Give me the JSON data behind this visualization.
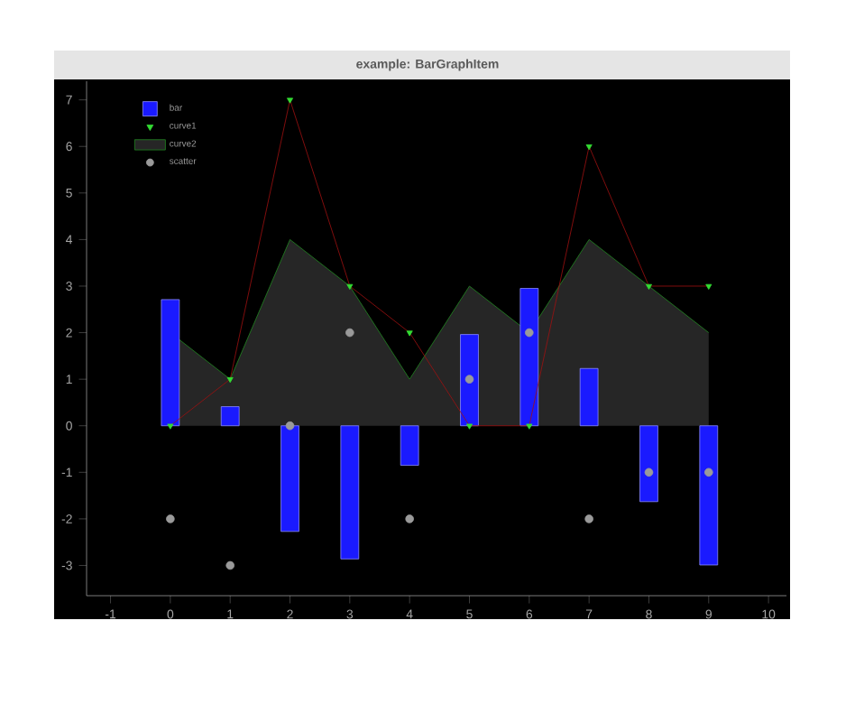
{
  "chart_data": {
    "type": "bar",
    "title": "example: BarGraphItem",
    "x": [
      0,
      1,
      2,
      3,
      4,
      5,
      6,
      7,
      8,
      9
    ],
    "series": [
      {
        "name": "bar",
        "color": "#1a1aff",
        "values": [
          2.71,
          0.41,
          -2.27,
          -2.86,
          -0.85,
          1.96,
          2.95,
          1.23,
          -1.63,
          -2.99
        ]
      },
      {
        "name": "curve1",
        "type": "line",
        "color": "#a01010",
        "marker": "triangle",
        "colors": [
          "#33dd33",
          "#33dd33",
          "#33dd33",
          "#33dd33",
          "#33dd33",
          "#33dd33",
          "#33dd33",
          "#33dd33",
          "#33dd33",
          "#33dd33"
        ],
        "values": [
          0,
          1,
          7,
          3,
          2,
          0,
          0,
          6,
          3,
          3
        ]
      },
      {
        "name": "curve2",
        "type": "area",
        "color": "#228822",
        "values": [
          2,
          1,
          4,
          3,
          1,
          3,
          2,
          4,
          3,
          2
        ]
      },
      {
        "name": "scatter",
        "type": "scatter",
        "color": "#9a9a9a",
        "marker": "circle",
        "values": [
          -2,
          -3,
          0,
          2,
          -2,
          1,
          2,
          -2,
          -1,
          -1
        ]
      }
    ],
    "xlim": [
      -1.4,
      10.3
    ],
    "ylim": [
      -3.65,
      7.4
    ],
    "xticks": [
      -1,
      0,
      1,
      2,
      3,
      4,
      5,
      6,
      7,
      8,
      9,
      10
    ],
    "yticks": [
      -3,
      -2,
      -1,
      0,
      1,
      2,
      3,
      4,
      5,
      6,
      7
    ],
    "legend": "top left",
    "grid": false
  }
}
